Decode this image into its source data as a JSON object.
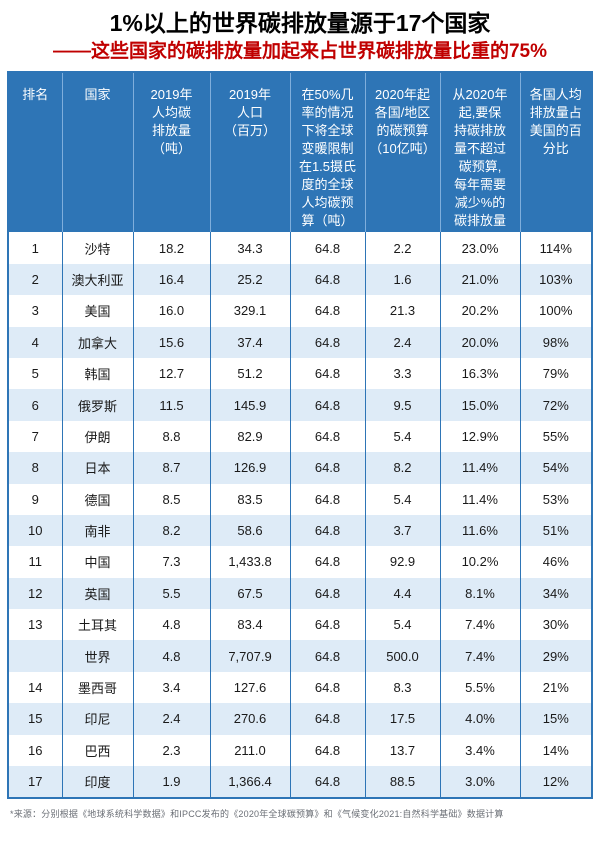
{
  "colors": {
    "header_bg": "#2E75B6",
    "header_text": "#FFFFFF",
    "row_bg": "#FFFFFF",
    "row_alt_bg": "#DEEBF7",
    "grid_line": "#2E75B6",
    "header_grid_line": "#7FAEDC",
    "title_color": "#000000",
    "subtitle_color": "#C00000",
    "page_bg": "#FFFFFF"
  },
  "chart_data": {
    "type": "table",
    "title": "1%以上的世界碳排放量源于17个国家",
    "subtitle": "——这些国家的碳排放量加起来占世界碳排放量比重的75%",
    "columns": [
      "排名",
      "国家",
      "2019年\n人均碳\n排放量\n（吨）",
      "2019年\n人口\n（百万）",
      "在50%几\n率的情况\n下将全球\n变暖限制\n在1.5摄氏\n度的全球\n人均碳预\n算（吨）",
      "2020年起\n各国/地区\n的碳预算\n（10亿吨）",
      "从2020年\n起,要保\n持碳排放\n量不超过\n碳预算,\n每年需要\n减少%的\n碳排放量",
      "各国人均\n排放量占\n美国的百\n分比"
    ],
    "rows": [
      [
        "1",
        "沙特",
        "18.2",
        "34.3",
        "64.8",
        "2.2",
        "23.0%",
        "114%"
      ],
      [
        "2",
        "澳大利亚",
        "16.4",
        "25.2",
        "64.8",
        "1.6",
        "21.0%",
        "103%"
      ],
      [
        "3",
        "美国",
        "16.0",
        "329.1",
        "64.8",
        "21.3",
        "20.2%",
        "100%"
      ],
      [
        "4",
        "加拿大",
        "15.6",
        "37.4",
        "64.8",
        "2.4",
        "20.0%",
        "98%"
      ],
      [
        "5",
        "韩国",
        "12.7",
        "51.2",
        "64.8",
        "3.3",
        "16.3%",
        "79%"
      ],
      [
        "6",
        "俄罗斯",
        "11.5",
        "145.9",
        "64.8",
        "9.5",
        "15.0%",
        "72%"
      ],
      [
        "7",
        "伊朗",
        "8.8",
        "82.9",
        "64.8",
        "5.4",
        "12.9%",
        "55%"
      ],
      [
        "8",
        "日本",
        "8.7",
        "126.9",
        "64.8",
        "8.2",
        "11.4%",
        "54%"
      ],
      [
        "9",
        "德国",
        "8.5",
        "83.5",
        "64.8",
        "5.4",
        "11.4%",
        "53%"
      ],
      [
        "10",
        "南非",
        "8.2",
        "58.6",
        "64.8",
        "3.7",
        "11.6%",
        "51%"
      ],
      [
        "11",
        "中国",
        "7.3",
        "1,433.8",
        "64.8",
        "92.9",
        "10.2%",
        "46%"
      ],
      [
        "12",
        "英国",
        "5.5",
        "67.5",
        "64.8",
        "4.4",
        "8.1%",
        "34%"
      ],
      [
        "13",
        "土耳其",
        "4.8",
        "83.4",
        "64.8",
        "5.4",
        "7.4%",
        "30%"
      ],
      [
        "",
        "世界",
        "4.8",
        "7,707.9",
        "64.8",
        "500.0",
        "7.4%",
        "29%"
      ],
      [
        "14",
        "墨西哥",
        "3.4",
        "127.6",
        "64.8",
        "8.3",
        "5.5%",
        "21%"
      ],
      [
        "15",
        "印尼",
        "2.4",
        "270.6",
        "64.8",
        "17.5",
        "4.0%",
        "15%"
      ],
      [
        "16",
        "巴西",
        "2.3",
        "211.0",
        "64.8",
        "13.7",
        "3.4%",
        "14%"
      ],
      [
        "17",
        "印度",
        "1.9",
        "1,366.4",
        "64.8",
        "88.5",
        "3.0%",
        "12%"
      ]
    ],
    "source": "*来源：分别根据《地球系统科学数据》和IPCC发布的《2020年全球碳预算》和《气候变化2021:自然科学基础》数据计算",
    "layout": {
      "header_position": "top",
      "grid": "on",
      "zebra_striping": true,
      "first_data_row_bg": "white"
    }
  }
}
